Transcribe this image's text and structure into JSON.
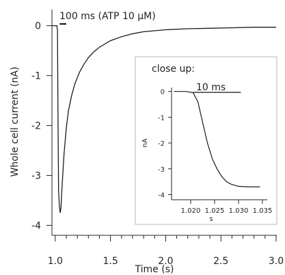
{
  "chart_data": [
    {
      "type": "line",
      "xlabel": "Time (s)",
      "ylabel": "Whole cell current (nA)",
      "xlim": [
        0.97,
        3.0
      ],
      "ylim": [
        -4.2,
        0.05
      ],
      "xticks": [
        1.0,
        1.5,
        2.0,
        2.5,
        3.0
      ],
      "xtick_labels": [
        "1.0",
        "1.5",
        "2.0",
        "2.5",
        "3.0"
      ],
      "yticks": [
        0,
        -1,
        -2,
        -3,
        -4
      ],
      "ytick_labels": [
        "0",
        "-1",
        "-2",
        "-3",
        "-4"
      ],
      "annotation": "100 ms  (ATP 10 μM)",
      "scalebar_duration_s": 0.1,
      "grid": false,
      "series": [
        {
          "color": "#1a1a1a",
          "points": [
            [
              0.97,
              0.0
            ],
            [
              1.0,
              0.0
            ],
            [
              1.015,
              0.0
            ],
            [
              1.02,
              -0.1
            ],
            [
              1.025,
              -1.9
            ],
            [
              1.03,
              -3.3
            ],
            [
              1.037,
              -3.6
            ],
            [
              1.045,
              -3.75
            ],
            [
              1.052,
              -3.65
            ],
            [
              1.06,
              -3.3
            ],
            [
              1.07,
              -2.9
            ],
            [
              1.08,
              -2.55
            ],
            [
              1.1,
              -2.05
            ],
            [
              1.12,
              -1.7
            ],
            [
              1.15,
              -1.38
            ],
            [
              1.18,
              -1.15
            ],
            [
              1.22,
              -0.93
            ],
            [
              1.26,
              -0.77
            ],
            [
              1.3,
              -0.64
            ],
            [
              1.35,
              -0.52
            ],
            [
              1.4,
              -0.43
            ],
            [
              1.5,
              -0.3
            ],
            [
              1.6,
              -0.22
            ],
            [
              1.7,
              -0.16
            ],
            [
              1.8,
              -0.12
            ],
            [
              2.0,
              -0.08
            ],
            [
              2.2,
              -0.06
            ],
            [
              2.4,
              -0.05
            ],
            [
              2.6,
              -0.04
            ],
            [
              2.8,
              -0.03
            ],
            [
              3.0,
              -0.03
            ]
          ]
        }
      ]
    },
    {
      "type": "line",
      "title": "close up:",
      "xlabel": "s",
      "ylabel": "nA",
      "xlim": [
        1.016,
        1.036
      ],
      "ylim": [
        -4.2,
        0.15
      ],
      "xticks": [
        1.02,
        1.025,
        1.03,
        1.035
      ],
      "xtick_labels": [
        "1.020",
        "1.025",
        "1.030",
        "1.035"
      ],
      "yticks": [
        0,
        -1,
        -2,
        -3,
        -4
      ],
      "ytick_labels": [
        "0",
        "-1",
        "-2",
        "-3",
        "-4"
      ],
      "annotation": "10 ms",
      "scalebar_duration_s": 0.01,
      "grid": false,
      "series": [
        {
          "color": "#1a1a1a",
          "points": [
            [
              1.0165,
              0.0
            ],
            [
              1.019,
              0.0
            ],
            [
              1.0205,
              -0.05
            ],
            [
              1.0215,
              -0.4
            ],
            [
              1.0225,
              -1.2
            ],
            [
              1.0235,
              -2.0
            ],
            [
              1.0245,
              -2.6
            ],
            [
              1.0255,
              -3.0
            ],
            [
              1.0265,
              -3.3
            ],
            [
              1.0275,
              -3.5
            ],
            [
              1.0285,
              -3.6
            ],
            [
              1.03,
              -3.68
            ],
            [
              1.032,
              -3.7
            ],
            [
              1.0345,
              -3.7
            ]
          ]
        }
      ]
    }
  ]
}
